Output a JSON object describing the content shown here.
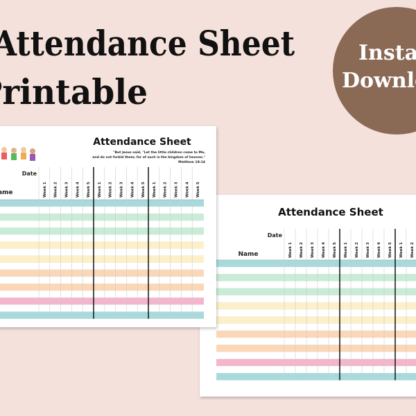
{
  "header": {
    "title_line1": "Attendance Sheet",
    "title_line2": "Printable"
  },
  "badge": {
    "line1": "Instant",
    "line2": "Download"
  },
  "sheets": [
    {
      "title": "Attendance Sheet",
      "quote_lines": [
        "\"But Jesus said, \"Let the little children come to Me,",
        "and do not forbid them; for of such is the kingdom of heaven.\""
      ],
      "reference": "Matthew 19:14",
      "date_label": "Date",
      "name_label": "Name",
      "weeks": [
        "Week 1",
        "Week 2",
        "Week 3",
        "Week 4",
        "Week 5"
      ]
    },
    {
      "title": "Attendance Sheet",
      "date_label": "Date",
      "name_label": "Name",
      "weeks": [
        "Week 1",
        "Week 2",
        "Week 3",
        "Week 4",
        "Week 5"
      ]
    }
  ]
}
